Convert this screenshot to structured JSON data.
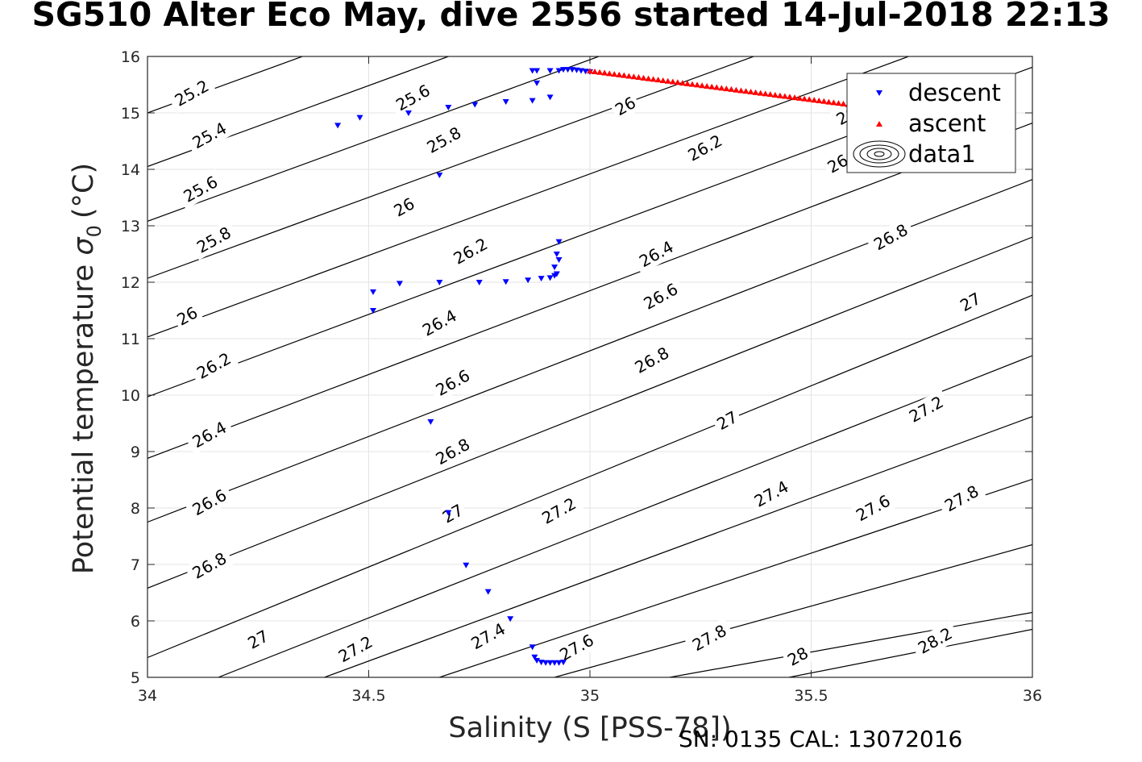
{
  "chart_data": {
    "type": "scatter",
    "title": "SG510 Alter Eco May, dive 2556 started 14-Jul-2018 22:13",
    "xlabel": "Salinity (S [PSS-78])",
    "ylabel": "Potential temperature",
    "ylabel_symbol": "σ",
    "ylabel_subscript": "0",
    "ylabel_unit": "(°C)",
    "xlim": [
      34,
      36
    ],
    "ylim": [
      5,
      16
    ],
    "xticks": [
      "34",
      "34.5",
      "35",
      "35.5",
      "36"
    ],
    "yticks": [
      "5",
      "6",
      "7",
      "8",
      "9",
      "10",
      "11",
      "12",
      "13",
      "14",
      "15",
      "16"
    ],
    "grid": true,
    "legend_position": "top-right",
    "footnote": "SN: 0135  CAL: 13072016",
    "series": [
      {
        "name": "descent",
        "marker": "triangle-down",
        "color": "#0000ff",
        "x": [
          34.43,
          34.48,
          34.59,
          34.68,
          34.74,
          34.81,
          34.87,
          34.88,
          34.88,
          34.87,
          34.91,
          34.91,
          34.93,
          34.94,
          34.95,
          34.96,
          34.97,
          34.98,
          34.99,
          35.0,
          34.66,
          34.93,
          34.925,
          34.93,
          34.92,
          34.925,
          34.92,
          34.91,
          34.89,
          34.86,
          34.81,
          34.75,
          34.66,
          34.57,
          34.51,
          34.51,
          34.64,
          34.68,
          34.72,
          34.77,
          34.82,
          34.87,
          34.875,
          34.88,
          34.89,
          34.9,
          34.91,
          34.92,
          34.93,
          34.94
        ],
        "y": [
          14.78,
          14.92,
          15.0,
          15.1,
          15.15,
          15.2,
          15.22,
          15.53,
          15.75,
          15.75,
          15.28,
          15.75,
          15.75,
          15.77,
          15.77,
          15.77,
          15.76,
          15.75,
          15.74,
          15.73,
          13.9,
          12.72,
          12.5,
          12.4,
          12.27,
          12.15,
          12.12,
          12.08,
          12.07,
          12.04,
          12.01,
          12.0,
          12.0,
          11.98,
          11.83,
          11.5,
          9.53,
          7.92,
          6.99,
          6.52,
          6.04,
          5.54,
          5.36,
          5.3,
          5.27,
          5.26,
          5.26,
          5.26,
          5.26,
          5.27
        ]
      },
      {
        "name": "ascent",
        "marker": "triangle-up",
        "color": "#ff0000",
        "x_start": 35.0,
        "y_start": 15.74,
        "x_end": 35.65,
        "y_end": 15.08,
        "count": 60
      },
      {
        "name": "data1",
        "type": "contour",
        "color": "#000000",
        "levels": [
          25.2,
          25.4,
          25.6,
          25.8,
          26,
          26.2,
          26.4,
          26.6,
          26.8,
          27,
          27.2,
          27.4,
          27.6,
          27.8,
          28,
          28.2
        ],
        "iso_lines": [
          {
            "level": 25.2,
            "x0": 34.0,
            "y0": 15.0,
            "x1": 34.35,
            "y1": 16.0
          },
          {
            "level": 25.4,
            "x0": 34.0,
            "y0": 14.05,
            "x1": 34.68,
            "y1": 16.0
          },
          {
            "level": 25.6,
            "x0": 34.0,
            "y0": 13.08,
            "x1": 35.02,
            "y1": 16.0
          },
          {
            "level": 25.8,
            "x0": 34.0,
            "y0": 12.07,
            "x1": 35.37,
            "y1": 16.0
          },
          {
            "level": 26,
            "x0": 34.0,
            "y0": 11.03,
            "x1": 35.72,
            "y1": 16.0
          },
          {
            "level": 26.2,
            "x0": 34.0,
            "y0": 9.97,
            "x1": 36.0,
            "y1": 15.81
          },
          {
            "level": 26.4,
            "x0": 34.0,
            "y0": 8.88,
            "x1": 36.0,
            "y1": 14.82
          },
          {
            "level": 26.6,
            "x0": 34.0,
            "y0": 7.75,
            "x1": 36.0,
            "y1": 13.82
          },
          {
            "level": 26.8,
            "x0": 34.0,
            "y0": 6.58,
            "x1": 36.0,
            "y1": 12.8
          },
          {
            "level": 27,
            "x0": 34.0,
            "y0": 5.35,
            "x1": 36.0,
            "y1": 11.77
          },
          {
            "level": 27.2,
            "x0": 34.16,
            "y0": 5.0,
            "x1": 36.0,
            "y1": 10.7
          },
          {
            "level": 27.4,
            "x0": 34.4,
            "y0": 5.0,
            "x1": 36.0,
            "y1": 9.62
          },
          {
            "level": 27.6,
            "x0": 34.66,
            "y0": 5.0,
            "x1": 36.0,
            "y1": 8.51
          },
          {
            "level": 27.8,
            "x0": 34.92,
            "y0": 5.0,
            "x1": 36.0,
            "y1": 7.35
          },
          {
            "level": 28,
            "x0": 35.18,
            "y0": 5.0,
            "x1": 36.0,
            "y1": 6.15
          },
          {
            "level": 28.2,
            "x0": 35.45,
            "y0": 5.0,
            "x1": 36.0,
            "y1": 5.85
          }
        ],
        "labels": [
          {
            "text": "25.2",
            "x": 34.1,
            "y": 15.35
          },
          {
            "text": "25.4",
            "x": 34.14,
            "y": 14.6
          },
          {
            "text": "25.6",
            "x": 34.12,
            "y": 13.65
          },
          {
            "text": "25.8",
            "x": 34.15,
            "y": 12.75
          },
          {
            "text": "26",
            "x": 34.09,
            "y": 11.4
          },
          {
            "text": "26.2",
            "x": 34.15,
            "y": 10.52
          },
          {
            "text": "26.4",
            "x": 34.14,
            "y": 9.3
          },
          {
            "text": "26.6",
            "x": 34.14,
            "y": 8.1
          },
          {
            "text": "26.8",
            "x": 34.14,
            "y": 6.98
          },
          {
            "text": "27",
            "x": 34.25,
            "y": 5.67
          },
          {
            "text": "27.2",
            "x": 34.47,
            "y": 5.5
          },
          {
            "text": "27.4",
            "x": 34.77,
            "y": 5.73
          },
          {
            "text": "27.6",
            "x": 34.97,
            "y": 5.53
          },
          {
            "text": "27.8",
            "x": 35.27,
            "y": 5.7
          },
          {
            "text": "28",
            "x": 35.47,
            "y": 5.37
          },
          {
            "text": "28.2",
            "x": 35.78,
            "y": 5.65
          },
          {
            "text": "25.6",
            "x": 34.6,
            "y": 15.27
          },
          {
            "text": "25.8",
            "x": 34.67,
            "y": 14.52
          },
          {
            "text": "26",
            "x": 34.58,
            "y": 13.33
          },
          {
            "text": "26.2",
            "x": 34.73,
            "y": 12.55
          },
          {
            "text": "26.4",
            "x": 34.66,
            "y": 11.28
          },
          {
            "text": "26.6",
            "x": 34.69,
            "y": 10.22
          },
          {
            "text": "26.8",
            "x": 34.69,
            "y": 9.0
          },
          {
            "text": "27",
            "x": 34.69,
            "y": 7.9
          },
          {
            "text": "27.2",
            "x": 34.93,
            "y": 7.95
          },
          {
            "text": "26",
            "x": 35.08,
            "y": 15.12
          },
          {
            "text": "26.2",
            "x": 35.26,
            "y": 14.38
          },
          {
            "text": "26.4",
            "x": 35.15,
            "y": 12.5
          },
          {
            "text": "26.6",
            "x": 35.16,
            "y": 11.75
          },
          {
            "text": "26.8",
            "x": 35.14,
            "y": 10.62
          },
          {
            "text": "27",
            "x": 35.31,
            "y": 9.55
          },
          {
            "text": "27.4",
            "x": 35.41,
            "y": 8.25
          },
          {
            "text": "27.2",
            "x": 35.76,
            "y": 9.75
          },
          {
            "text": "26.8",
            "x": 35.68,
            "y": 12.8
          },
          {
            "text": "27",
            "x": 35.86,
            "y": 11.65
          },
          {
            "text": "27.2",
            "x": 36.0,
            "y": 11.6
          },
          {
            "text": "27.4",
            "x": 35.98,
            "y": 10.5
          },
          {
            "text": "27.6",
            "x": 36.0,
            "y": 9.45
          },
          {
            "text": "27.6",
            "x": 35.64,
            "y": 8.0
          },
          {
            "text": "27.8",
            "x": 35.84,
            "y": 8.17
          },
          {
            "text": "28",
            "x": 36.0,
            "y": 7.65
          }
        ],
        "partial_labels": [
          {
            "text": "26",
            "x": 35.58,
            "y": 14.95
          },
          {
            "text": "26",
            "x": 35.56,
            "y": 14.1
          }
        ]
      }
    ]
  }
}
